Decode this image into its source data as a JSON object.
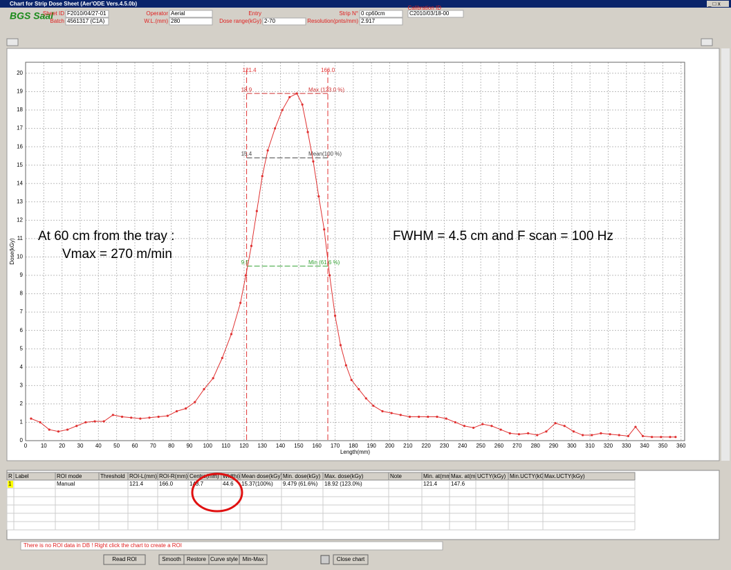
{
  "window": {
    "title": "Chart for Strip Dose Sheet (Aer'ODE Vers.4.5.0b)"
  },
  "header": {
    "brand": "BGS Saal",
    "fields": [
      {
        "label": "Sheet ID",
        "value": "F2010/04/27-01"
      },
      {
        "label": "Batch",
        "value": "4561317 (C1A)"
      },
      {
        "label": "Operator",
        "value": "Aerial"
      },
      {
        "label": "W.L.(mm)",
        "value": "280"
      },
      {
        "label": "Entry"
      },
      {
        "label": "Dose range(kGy)",
        "value": "2-70"
      },
      {
        "label": "Strip N°",
        "value": "0 cp60cm"
      },
      {
        "label": "Resolution(pnts/mm)",
        "value": "2.917"
      },
      {
        "label": "Calibration ID",
        "value": "C2010/03/18-00"
      }
    ]
  },
  "chart_data": {
    "type": "line",
    "xlabel": "Length(mm)",
    "ylabel": "Dose(kGy)",
    "color": "#e03030",
    "grid": true,
    "xlim": [
      0,
      362
    ],
    "ylim": [
      0,
      20.6
    ],
    "xticks": [
      0,
      10,
      20,
      30,
      40,
      50,
      60,
      70,
      80,
      90,
      100,
      110,
      120,
      130,
      140,
      150,
      160,
      170,
      180,
      190,
      200,
      210,
      220,
      230,
      240,
      250,
      260,
      270,
      280,
      290,
      300,
      310,
      320,
      330,
      340,
      350,
      360
    ],
    "yticks": [
      0,
      1,
      2,
      3,
      4,
      5,
      6,
      7,
      8,
      9,
      10,
      11,
      12,
      13,
      14,
      15,
      16,
      17,
      18,
      19,
      20
    ],
    "x": [
      3,
      8,
      13,
      18,
      23,
      28,
      33,
      38,
      43,
      48,
      53,
      58,
      63,
      68,
      73,
      78,
      83,
      88,
      93,
      98,
      103,
      108,
      113,
      118,
      121,
      124,
      127,
      130,
      133,
      137,
      141,
      145,
      149,
      152,
      155,
      158,
      161,
      164,
      167,
      170,
      173,
      176,
      179,
      183,
      187,
      191,
      196,
      201,
      206,
      211,
      216,
      221,
      226,
      231,
      236,
      241,
      246,
      251,
      256,
      261,
      266,
      271,
      276,
      281,
      286,
      291,
      296,
      301,
      306,
      311,
      316,
      321,
      326,
      331,
      335,
      339,
      344,
      349,
      354,
      357
    ],
    "values": [
      1.2,
      1.0,
      0.6,
      0.5,
      0.6,
      0.8,
      1.0,
      1.05,
      1.05,
      1.4,
      1.3,
      1.25,
      1.2,
      1.25,
      1.3,
      1.35,
      1.6,
      1.75,
      2.1,
      2.8,
      3.4,
      4.5,
      5.8,
      7.5,
      9.0,
      10.6,
      12.5,
      14.4,
      15.8,
      17.0,
      18.0,
      18.7,
      18.9,
      18.3,
      16.8,
      15.2,
      13.3,
      11.5,
      9.0,
      6.8,
      5.2,
      4.1,
      3.3,
      2.8,
      2.3,
      1.9,
      1.6,
      1.5,
      1.4,
      1.3,
      1.3,
      1.3,
      1.3,
      1.2,
      1.0,
      0.8,
      0.7,
      0.9,
      0.8,
      0.6,
      0.4,
      0.35,
      0.4,
      0.3,
      0.5,
      0.95,
      0.8,
      0.5,
      0.3,
      0.3,
      0.4,
      0.35,
      0.3,
      0.25,
      0.75,
      0.25,
      0.2,
      0.2,
      0.2,
      0.2
    ],
    "vlines": [
      121.4,
      {
        "value": 166,
        "label": "166.0"
      }
    ],
    "hlines": [
      {
        "value": 18.9,
        "name": "Max (123.0 %)",
        "color": "#d03030"
      },
      {
        "value": 15.4,
        "name": "Mean(100 %)",
        "color": "#404040"
      },
      {
        "value": 9.5,
        "name": "Min (61.6 %)",
        "color": "#30a030"
      }
    ],
    "annotations": [
      "At 60 cm from the tray :",
      "Vmax = 270 m/min",
      "FWHM = 4.5 cm and F scan = 100 Hz"
    ]
  },
  "table": {
    "columns": [
      "R",
      "Label",
      "ROI mode",
      "Threshold",
      "ROI-L(mm)",
      "ROI-R(mm)",
      "Centre(mm)",
      "Width(mm)",
      "Mean dose(kGy)",
      "Min. dose(kGy)",
      "Max. dose(kGy)",
      "Note",
      "Min. at(mm)",
      "Max. at(mm)",
      "UCTY(kGy)",
      "Min.UCTY(kGy)",
      "Max.UCTY(kGy)"
    ],
    "rows": [
      [
        "1",
        null,
        "Manual",
        null,
        "121.4",
        "166.0",
        "143.7",
        "44.6",
        "15.37(100%)",
        "9.479 (61.6%)",
        "18.92 (123.0%)",
        null,
        "121.4",
        "147.6",
        null,
        null,
        null
      ]
    ]
  },
  "status": "There is no ROI data in DB ! Right click the chart to create a ROI",
  "buttons": [
    "Read ROI",
    "Smooth",
    "Restore",
    "Curve style",
    "Min-Max",
    "Close chart"
  ]
}
